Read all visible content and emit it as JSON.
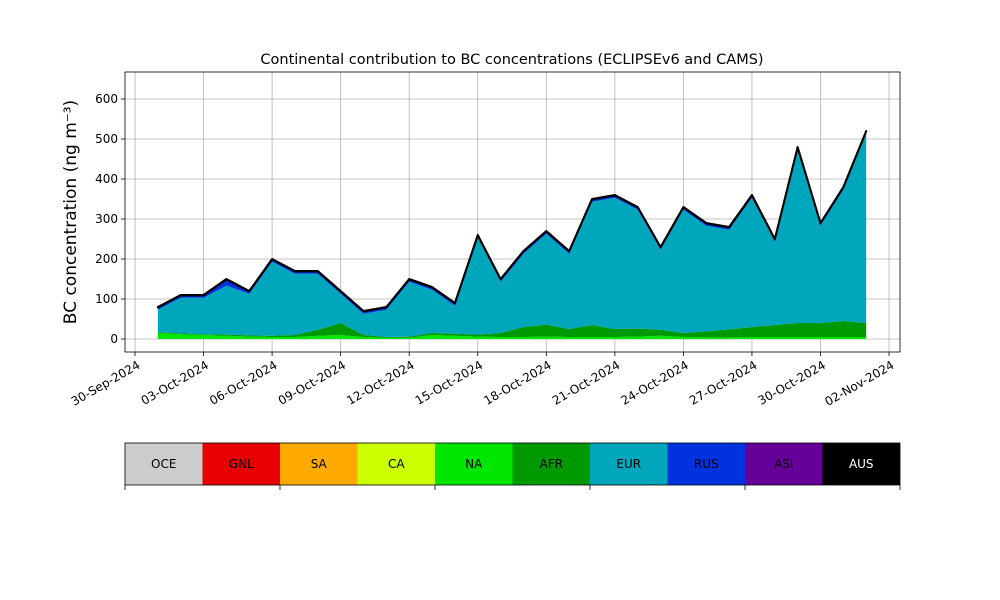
{
  "chart_data": {
    "type": "stacked-area",
    "title": "Continental contribution to BC concentrations (ECLIPSEv6 and CAMS)",
    "y_label": "BC concentration (ng m⁻³)",
    "x": [
      "2024-10-01",
      "2024-10-02",
      "2024-10-03",
      "2024-10-04",
      "2024-10-05",
      "2024-10-06",
      "2024-10-07",
      "2024-10-08",
      "2024-10-09",
      "2024-10-10",
      "2024-10-11",
      "2024-10-12",
      "2024-10-13",
      "2024-10-14",
      "2024-10-15",
      "2024-10-16",
      "2024-10-17",
      "2024-10-18",
      "2024-10-19",
      "2024-10-20",
      "2024-10-21",
      "2024-10-22",
      "2024-10-23",
      "2024-10-24",
      "2024-10-25",
      "2024-10-26",
      "2024-10-27",
      "2024-10-28",
      "2024-10-29",
      "2024-10-30",
      "2024-10-31",
      "2024-11-01"
    ],
    "series": [
      {
        "name": "OCE",
        "color": "#cccccc",
        "values": [
          0,
          0,
          0,
          0,
          0,
          0,
          0,
          0,
          0,
          0,
          0,
          0,
          0,
          0,
          0,
          0,
          0,
          0,
          0,
          0,
          0,
          0,
          0,
          0,
          0,
          0,
          0,
          0,
          0,
          0,
          0,
          0
        ]
      },
      {
        "name": "GNL",
        "color": "#e60000",
        "values": [
          0,
          0,
          0,
          0,
          0,
          0,
          0,
          0,
          0,
          0,
          0,
          0,
          0,
          0,
          0,
          0,
          0,
          0,
          0,
          0,
          0,
          0,
          0,
          0,
          0,
          0,
          0,
          0,
          0,
          0,
          0,
          0
        ]
      },
      {
        "name": "SA",
        "color": "#ffaa00",
        "values": [
          0,
          0,
          0,
          0,
          0,
          0,
          0,
          0,
          0,
          0,
          0,
          0,
          0,
          0,
          0,
          0,
          0,
          0,
          0,
          0,
          0,
          0,
          0,
          0,
          0,
          0,
          0,
          0,
          0,
          0,
          0,
          0
        ]
      },
      {
        "name": "CA",
        "color": "#ccff00",
        "values": [
          0,
          0,
          0,
          0,
          0,
          0,
          0,
          0,
          0,
          0,
          0,
          0,
          0,
          0,
          0,
          0,
          0,
          0,
          0,
          0,
          0,
          0,
          0,
          0,
          0,
          0,
          0,
          0,
          0,
          0,
          0,
          0
        ]
      },
      {
        "name": "NA",
        "color": "#00e600",
        "values": [
          15,
          12,
          10,
          8,
          6,
          5,
          5,
          8,
          10,
          5,
          3,
          3,
          10,
          8,
          6,
          5,
          5,
          6,
          5,
          5,
          5,
          6,
          8,
          5,
          4,
          4,
          5,
          5,
          5,
          5,
          5,
          5
        ]
      },
      {
        "name": "AFR",
        "color": "#009900",
        "values": [
          2,
          2,
          2,
          3,
          3,
          3,
          5,
          15,
          30,
          5,
          2,
          3,
          5,
          5,
          5,
          10,
          25,
          30,
          20,
          30,
          20,
          20,
          15,
          10,
          15,
          20,
          25,
          30,
          35,
          35,
          40,
          35
        ]
      },
      {
        "name": "EUR",
        "color": "#00a6bc",
        "values": [
          56,
          89,
          91,
          122,
          104,
          185,
          153,
          140,
          73,
          53,
          68,
          137,
          108,
          70,
          242,
          128,
          183,
          227,
          188,
          308,
          328,
          297,
          200,
          308,
          264,
          249,
          323,
          208,
          433,
          243,
          328,
          473
        ]
      },
      {
        "name": "RUS",
        "color": "#0033dd",
        "values": [
          5,
          5,
          5,
          15,
          5,
          5,
          5,
          5,
          5,
          5,
          5,
          5,
          5,
          5,
          5,
          5,
          5,
          5,
          5,
          5,
          5,
          5,
          5,
          5,
          5,
          5,
          5,
          5,
          5,
          5,
          5,
          5
        ]
      },
      {
        "name": "ASI",
        "color": "#660099",
        "values": [
          1,
          1,
          1,
          1,
          1,
          1,
          1,
          1,
          1,
          1,
          1,
          1,
          1,
          1,
          1,
          1,
          1,
          1,
          1,
          1,
          1,
          1,
          1,
          1,
          1,
          1,
          1,
          1,
          1,
          1,
          1,
          1
        ]
      },
      {
        "name": "AUS",
        "color": "#000000",
        "values": [
          1,
          1,
          1,
          1,
          1,
          1,
          1,
          1,
          1,
          1,
          1,
          1,
          1,
          1,
          1,
          1,
          1,
          1,
          1,
          1,
          1,
          1,
          1,
          1,
          1,
          1,
          1,
          1,
          1,
          1,
          1,
          1
        ]
      }
    ],
    "xlim": [
      "2024-09-29T13:30:00Z",
      "2024-11-02T11:30:00Z"
    ],
    "xticks": [
      {
        "value": "2024-09-30",
        "label": "30-Sep-2024"
      },
      {
        "value": "2024-10-03",
        "label": "03-Oct-2024"
      },
      {
        "value": "2024-10-06",
        "label": "06-Oct-2024"
      },
      {
        "value": "2024-10-09",
        "label": "09-Oct-2024"
      },
      {
        "value": "2024-10-12",
        "label": "12-Oct-2024"
      },
      {
        "value": "2024-10-15",
        "label": "15-Oct-2024"
      },
      {
        "value": "2024-10-18",
        "label": "18-Oct-2024"
      },
      {
        "value": "2024-10-21",
        "label": "21-Oct-2024"
      },
      {
        "value": "2024-10-24",
        "label": "24-Oct-2024"
      },
      {
        "value": "2024-10-27",
        "label": "27-Oct-2024"
      },
      {
        "value": "2024-10-30",
        "label": "30-Oct-2024"
      },
      {
        "value": "2024-11-02",
        "label": "02-Nov-2024"
      }
    ],
    "ylim": [
      -32.5,
      667.5
    ],
    "yticks": [
      0,
      100,
      200,
      300,
      400,
      500,
      600
    ],
    "grid": true
  }
}
